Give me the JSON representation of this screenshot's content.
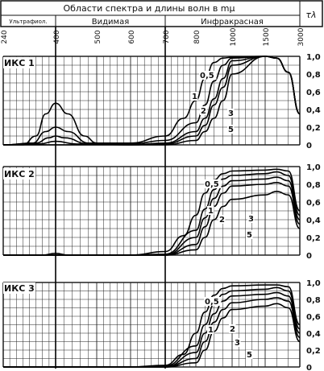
{
  "chart_data": {
    "type": "line",
    "header": {
      "title": "Области спектра и длины волн в mμ",
      "regions": [
        "Ультрафиол.",
        "Видимая",
        "Инфракрасная"
      ]
    },
    "y_axis_symbol": "τλ",
    "x_ticks": [
      240,
      400,
      500,
      600,
      700,
      800,
      1000,
      1500,
      3000
    ],
    "y_ticks": [
      "1,0",
      "0,8",
      "0,6",
      "0,4",
      "0,2",
      "0"
    ],
    "ylim": [
      0,
      1.0
    ],
    "panels": [
      {
        "label": "ИКС 1",
        "curve_labels": [
          "0,5",
          "1",
          "2",
          "3",
          "5"
        ],
        "series": [
          {
            "name": "0,5",
            "x": [
              240,
              300,
              340,
              370,
              400,
              430,
              470,
              500,
              600,
              700,
              760,
              800,
              850,
              900,
              950,
              1000,
              1500,
              2000,
              2500,
              3000
            ],
            "y": [
              0,
              0,
              0.1,
              0.35,
              0.47,
              0.35,
              0.1,
              0.02,
              0.02,
              0.1,
              0.3,
              0.5,
              0.75,
              0.93,
              0.98,
              0.99,
              1.0,
              0.98,
              0.82,
              0.35
            ]
          },
          {
            "name": "1",
            "x": [
              240,
              330,
              370,
              400,
              430,
              480,
              600,
              700,
              800,
              850,
              900,
              950,
              1000,
              1500,
              2000,
              2500,
              3000
            ],
            "y": [
              0,
              0.02,
              0.15,
              0.2,
              0.15,
              0.02,
              0.01,
              0.05,
              0.25,
              0.45,
              0.72,
              0.9,
              0.98,
              1.0,
              0.98,
              0.82,
              0.35
            ]
          },
          {
            "name": "2",
            "x": [
              240,
              340,
              380,
              400,
              420,
              480,
              600,
              700,
              800,
              850,
              900,
              950,
              1000,
              1500,
              2000,
              2500,
              3000
            ],
            "y": [
              0,
              0.02,
              0.08,
              0.1,
              0.08,
              0.01,
              0,
              0.02,
              0.15,
              0.3,
              0.52,
              0.75,
              0.95,
              1.0,
              0.98,
              0.82,
              0.35
            ]
          },
          {
            "name": "3",
            "x": [
              240,
              350,
              400,
              450,
              600,
              700,
              800,
              850,
              900,
              950,
              1000,
              1500,
              2000,
              2500,
              3000
            ],
            "y": [
              0,
              0.01,
              0.04,
              0.01,
              0,
              0.01,
              0.1,
              0.22,
              0.45,
              0.65,
              0.9,
              1.0,
              0.98,
              0.82,
              0.35
            ]
          },
          {
            "name": "5",
            "x": [
              240,
              600,
              700,
              800,
              850,
              900,
              950,
              1000,
              1500,
              2000,
              2500,
              3000
            ],
            "y": [
              0,
              0,
              0,
              0.05,
              0.15,
              0.3,
              0.5,
              0.8,
              1.0,
              0.98,
              0.82,
              0.35
            ]
          }
        ]
      },
      {
        "label": "ИКС 2",
        "curve_labels": [
          "0,5",
          "1",
          "2",
          "3",
          "5"
        ],
        "series": [
          {
            "name": "0,5",
            "x": [
              240,
              360,
              400,
              430,
              480,
              600,
              700,
              760,
              800,
              850,
              900,
              950,
              1000,
              1500,
              2000,
              2500,
              3000
            ],
            "y": [
              0,
              0,
              0.02,
              0,
              0,
              0,
              0.04,
              0.22,
              0.45,
              0.7,
              0.85,
              0.92,
              0.95,
              0.96,
              0.97,
              0.95,
              0.5
            ]
          },
          {
            "name": "1",
            "x": [
              240,
              600,
              700,
              800,
              850,
              900,
              950,
              1000,
              1500,
              2000,
              2500,
              3000
            ],
            "y": [
              0,
              0,
              0.01,
              0.28,
              0.52,
              0.74,
              0.86,
              0.9,
              0.92,
              0.94,
              0.9,
              0.45
            ]
          },
          {
            "name": "2",
            "x": [
              240,
              600,
              700,
              800,
              850,
              900,
              950,
              1000,
              1500,
              2000,
              2500,
              3000
            ],
            "y": [
              0,
              0,
              0,
              0.2,
              0.42,
              0.64,
              0.78,
              0.84,
              0.86,
              0.88,
              0.84,
              0.4
            ]
          },
          {
            "name": "3",
            "x": [
              240,
              600,
              700,
              800,
              850,
              900,
              950,
              1000,
              1500,
              2000,
              2500,
              3000
            ],
            "y": [
              0,
              0,
              0,
              0.12,
              0.32,
              0.55,
              0.7,
              0.78,
              0.8,
              0.82,
              0.78,
              0.35
            ]
          },
          {
            "name": "5",
            "x": [
              240,
              600,
              700,
              800,
              850,
              900,
              950,
              1000,
              1500,
              2000,
              2500,
              3000
            ],
            "y": [
              0,
              0,
              0,
              0.06,
              0.2,
              0.4,
              0.55,
              0.63,
              0.68,
              0.72,
              0.68,
              0.3
            ]
          }
        ]
      },
      {
        "label": "ИКС 3",
        "curve_labels": [
          "0,5",
          "1",
          "2",
          "3",
          "5"
        ],
        "series": [
          {
            "name": "0,5",
            "x": [
              240,
              600,
              700,
              760,
              800,
              850,
              900,
              950,
              1000,
              1500,
              2000,
              2500,
              3000
            ],
            "y": [
              0,
              0,
              0.02,
              0.15,
              0.4,
              0.65,
              0.85,
              0.93,
              0.96,
              0.97,
              0.97,
              0.95,
              0.5
            ]
          },
          {
            "name": "1",
            "x": [
              240,
              600,
              700,
              800,
              850,
              900,
              950,
              1000,
              1500,
              2000,
              2500,
              3000
            ],
            "y": [
              0,
              0,
              0.01,
              0.25,
              0.5,
              0.74,
              0.86,
              0.9,
              0.92,
              0.94,
              0.9,
              0.45
            ]
          },
          {
            "name": "2",
            "x": [
              240,
              600,
              700,
              800,
              850,
              900,
              950,
              1000,
              1500,
              2000,
              2500,
              3000
            ],
            "y": [
              0,
              0,
              0,
              0.17,
              0.4,
              0.63,
              0.78,
              0.84,
              0.86,
              0.88,
              0.84,
              0.4
            ]
          },
          {
            "name": "3",
            "x": [
              240,
              600,
              700,
              800,
              850,
              900,
              950,
              1000,
              1500,
              2000,
              2500,
              3000
            ],
            "y": [
              0,
              0,
              0,
              0.1,
              0.3,
              0.53,
              0.68,
              0.76,
              0.8,
              0.82,
              0.78,
              0.35
            ]
          },
          {
            "name": "5",
            "x": [
              240,
              600,
              700,
              800,
              850,
              900,
              950,
              1000,
              1500,
              2000,
              2500,
              3000
            ],
            "y": [
              0,
              0,
              0,
              0.05,
              0.2,
              0.42,
              0.58,
              0.68,
              0.72,
              0.75,
              0.7,
              0.3
            ]
          }
        ]
      }
    ]
  }
}
